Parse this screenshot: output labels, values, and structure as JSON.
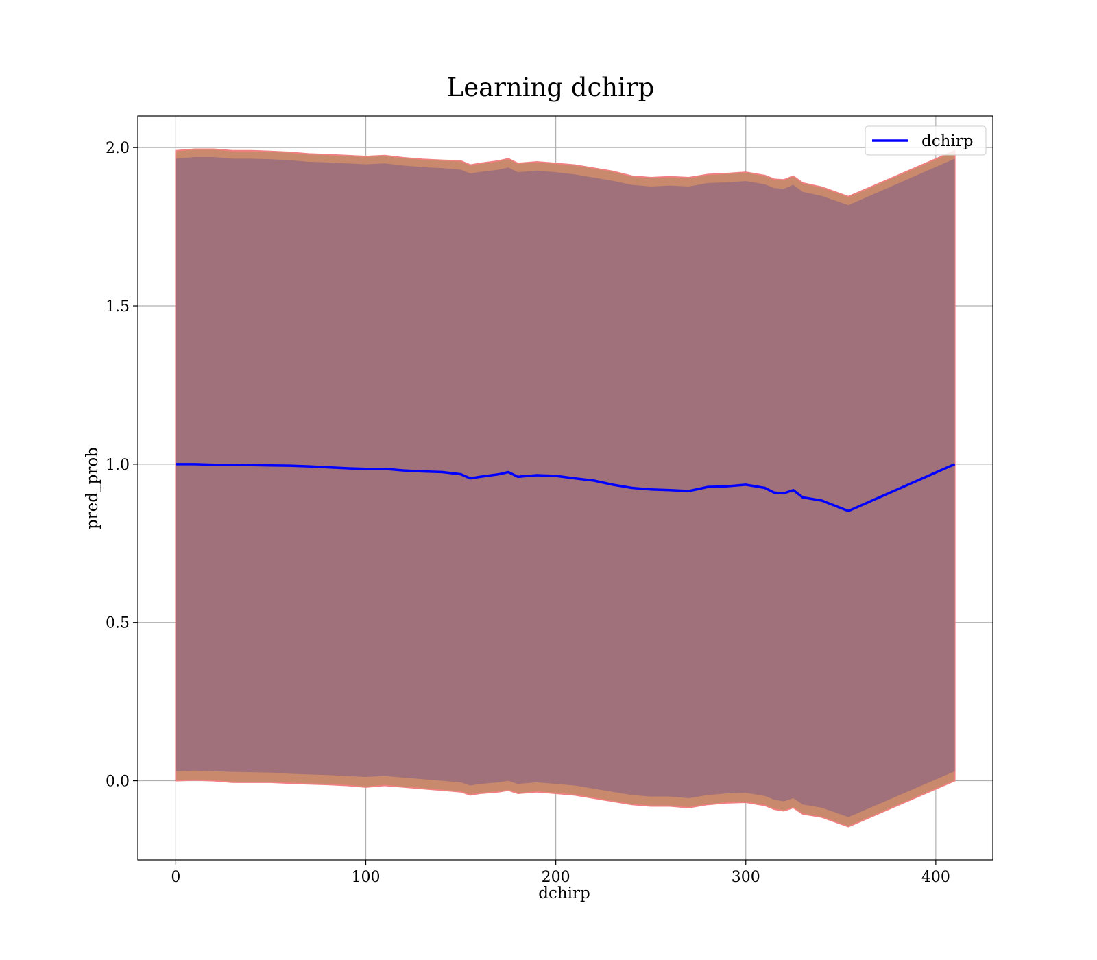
{
  "chart_data": {
    "type": "line",
    "title": "Learning dchirp",
    "xlabel": "dchirp",
    "ylabel": "pred_prob",
    "xlim": [
      -20,
      430
    ],
    "ylim": [
      -0.25,
      2.1
    ],
    "xticks": [
      0,
      100,
      200,
      300,
      400
    ],
    "xtick_labels": [
      "0",
      "100",
      "200",
      "300",
      "400"
    ],
    "yticks": [
      0.0,
      0.5,
      1.0,
      1.5,
      2.0
    ],
    "ytick_labels": [
      "0.0",
      "0.5",
      "1.0",
      "1.5",
      "2.0"
    ],
    "grid": true,
    "legend": {
      "placement": "top-right",
      "entries": [
        "dchirp"
      ]
    },
    "colors": {
      "line": "#0000ff",
      "band_outer": "#c8896c",
      "band_outer_edge": "#f08080",
      "band_inner": "#a0717a",
      "grid": "#b0b0b0"
    },
    "series": [
      {
        "name": "dchirp",
        "x": [
          0,
          10,
          20,
          30,
          40,
          50,
          60,
          70,
          80,
          90,
          100,
          110,
          120,
          130,
          140,
          150,
          155,
          160,
          170,
          175,
          180,
          190,
          200,
          210,
          220,
          230,
          240,
          250,
          260,
          270,
          280,
          290,
          300,
          310,
          315,
          320,
          325,
          330,
          340,
          354,
          410
        ],
        "y": [
          1.0,
          1.0,
          0.998,
          0.998,
          0.997,
          0.996,
          0.995,
          0.993,
          0.99,
          0.987,
          0.985,
          0.985,
          0.98,
          0.977,
          0.975,
          0.968,
          0.955,
          0.96,
          0.968,
          0.975,
          0.96,
          0.965,
          0.963,
          0.955,
          0.948,
          0.935,
          0.925,
          0.92,
          0.918,
          0.915,
          0.928,
          0.93,
          0.935,
          0.925,
          0.91,
          0.908,
          0.918,
          0.895,
          0.885,
          0.852,
          1.0
        ]
      }
    ],
    "band_outer": {
      "upper": [
        1.99,
        1.995,
        1.995,
        1.99,
        1.99,
        1.988,
        1.985,
        1.98,
        1.978,
        1.975,
        1.972,
        1.975,
        1.968,
        1.963,
        1.96,
        1.958,
        1.945,
        1.95,
        1.958,
        1.965,
        1.95,
        1.955,
        1.95,
        1.945,
        1.935,
        1.925,
        1.91,
        1.905,
        1.908,
        1.905,
        1.915,
        1.918,
        1.922,
        1.912,
        1.9,
        1.898,
        1.91,
        1.888,
        1.875,
        1.845,
        1.99
      ],
      "lower": [
        0.0,
        0.002,
        0.0,
        -0.005,
        -0.005,
        -0.005,
        -0.008,
        -0.01,
        -0.012,
        -0.015,
        -0.02,
        -0.015,
        -0.02,
        -0.025,
        -0.03,
        -0.035,
        -0.045,
        -0.04,
        -0.035,
        -0.03,
        -0.04,
        -0.035,
        -0.04,
        -0.045,
        -0.055,
        -0.065,
        -0.075,
        -0.08,
        -0.08,
        -0.085,
        -0.075,
        -0.07,
        -0.068,
        -0.078,
        -0.09,
        -0.095,
        -0.085,
        -0.105,
        -0.115,
        -0.145,
        0.0
      ]
    },
    "band_inner": {
      "upper": [
        1.965,
        1.97,
        1.97,
        1.965,
        1.965,
        1.963,
        1.96,
        1.955,
        1.953,
        1.95,
        1.947,
        1.95,
        1.943,
        1.938,
        1.935,
        1.93,
        1.918,
        1.923,
        1.93,
        1.937,
        1.922,
        1.927,
        1.922,
        1.915,
        1.905,
        1.895,
        1.882,
        1.877,
        1.88,
        1.877,
        1.888,
        1.89,
        1.894,
        1.884,
        1.872,
        1.87,
        1.882,
        1.86,
        1.847,
        1.818,
        1.965
      ],
      "lower": [
        0.03,
        0.032,
        0.03,
        0.028,
        0.027,
        0.026,
        0.022,
        0.02,
        0.018,
        0.015,
        0.012,
        0.015,
        0.01,
        0.005,
        0.0,
        -0.005,
        -0.015,
        -0.01,
        -0.005,
        0.0,
        -0.01,
        -0.005,
        -0.01,
        -0.015,
        -0.025,
        -0.035,
        -0.045,
        -0.05,
        -0.05,
        -0.055,
        -0.045,
        -0.04,
        -0.038,
        -0.048,
        -0.06,
        -0.065,
        -0.055,
        -0.075,
        -0.085,
        -0.115,
        0.03
      ]
    }
  }
}
